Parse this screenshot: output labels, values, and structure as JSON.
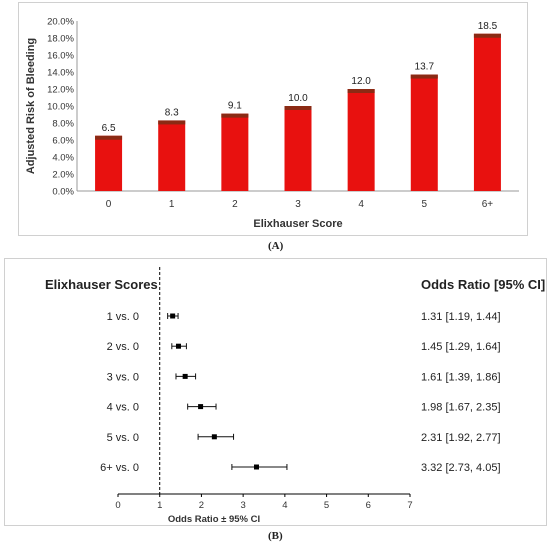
{
  "chart_data": [
    {
      "type": "bar",
      "panel_label": "(A)",
      "xlabel": "Elixhauser Score",
      "ylabel": "Adjusted Risk of Bleeding",
      "categories": [
        "0",
        "1",
        "2",
        "3",
        "4",
        "5",
        "6+"
      ],
      "values": [
        6.5,
        8.3,
        9.1,
        10.0,
        12.0,
        13.7,
        18.5
      ],
      "data_labels": [
        "6.5",
        "8.3",
        "9.1",
        "10.0",
        "12.0",
        "13.7",
        "18.5"
      ],
      "ylim": [
        0,
        20
      ],
      "yticks": [
        "0.0%",
        "2.0%",
        "4.0%",
        "6.0%",
        "8.0%",
        "10.0%",
        "12.0%",
        "14.0%",
        "16.0%",
        "18.0%",
        "20.0%"
      ],
      "bar_color": "#e8110f",
      "bar_edge_color": "#8b2a14",
      "grid": false
    },
    {
      "type": "forest",
      "panel_label": "(B)",
      "row_header": "Elixhauser Scores",
      "value_header": "Odds Ratio [95% CI]",
      "xlabel": "Odds Ratio ± 95% CI",
      "xlim": [
        0,
        7
      ],
      "xticks": [
        "0",
        "1",
        "2",
        "3",
        "4",
        "5",
        "6",
        "7"
      ],
      "reference_line": 1,
      "rows": [
        {
          "label": "1 vs. 0",
          "or": 1.31,
          "lo": 1.19,
          "hi": 1.44,
          "text": "1.31 [1.19, 1.44]"
        },
        {
          "label": "2 vs. 0",
          "or": 1.45,
          "lo": 1.29,
          "hi": 1.64,
          "text": "1.45 [1.29, 1.64]"
        },
        {
          "label": "3 vs. 0",
          "or": 1.61,
          "lo": 1.39,
          "hi": 1.86,
          "text": "1.61 [1.39, 1.86]"
        },
        {
          "label": "4 vs. 0",
          "or": 1.98,
          "lo": 1.67,
          "hi": 2.35,
          "text": "1.98 [1.67, 2.35]"
        },
        {
          "label": "5 vs. 0",
          "or": 2.31,
          "lo": 1.92,
          "hi": 2.77,
          "text": "2.31 [1.92, 2.77]"
        },
        {
          "label": "6+ vs. 0",
          "or": 3.32,
          "lo": 2.73,
          "hi": 4.05,
          "text": "3.32 [2.73, 4.05]"
        }
      ]
    }
  ]
}
